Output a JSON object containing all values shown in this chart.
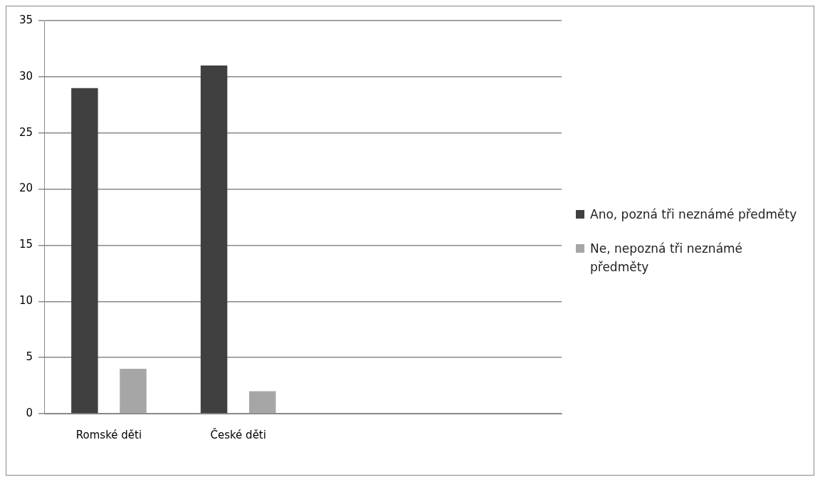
{
  "chart_data": {
    "type": "bar",
    "categories": [
      "Romské děti",
      "České děti",
      null,
      null
    ],
    "series": [
      {
        "name": "Ano, pozná tři neznámé předměty",
        "color": "#404040",
        "values": [
          29,
          31,
          null,
          null
        ]
      },
      {
        "name": "Ne, nepozná tři neznámé předměty",
        "color": "#a6a6a6",
        "values": [
          4,
          2,
          null,
          null
        ]
      }
    ],
    "ylim": [
      0,
      35
    ],
    "yticks": [
      0,
      5,
      10,
      15,
      20,
      25,
      30,
      35
    ],
    "grid": "y",
    "legend": "right"
  }
}
